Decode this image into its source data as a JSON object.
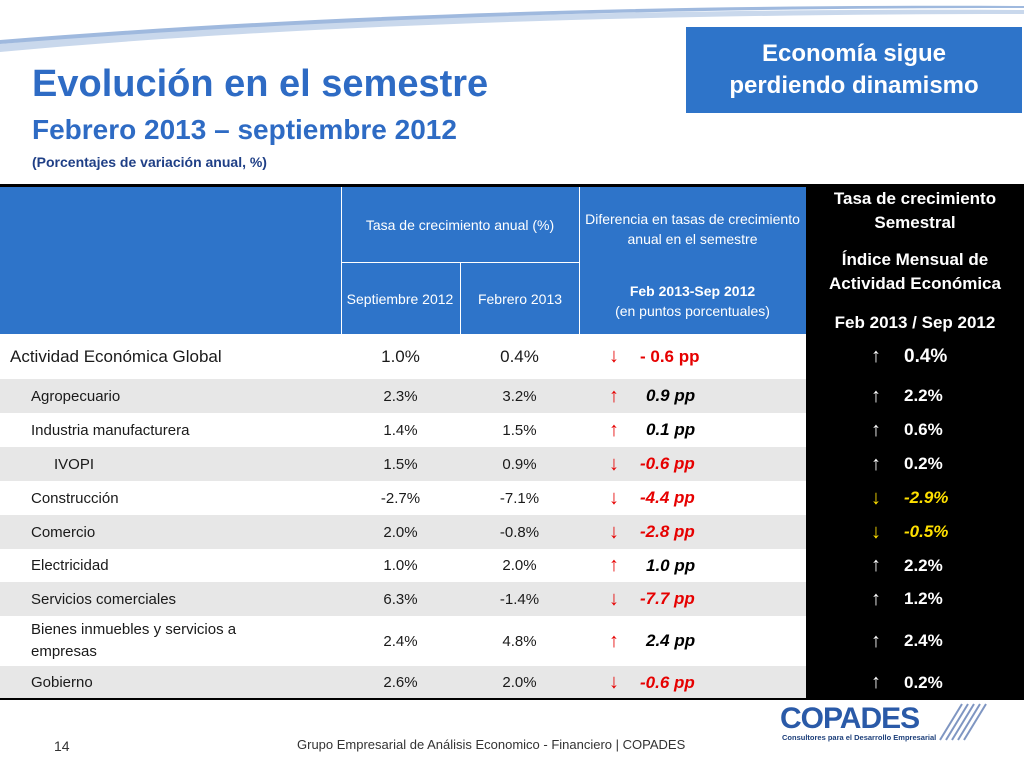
{
  "header": {
    "title": "Evolución en el semestre",
    "subtitle": "Febrero 2013 – septiembre 2012",
    "note": "(Porcentajes de variación anual, %)",
    "callout": "Economía sigue perdiendo dinamismo"
  },
  "colors": {
    "accent": "#2e74c9",
    "title": "#2e6bc4",
    "negative": "#e60000",
    "warning": "#ffe000"
  },
  "table": {
    "col_growth": "Tasa de crecimiento anual (%)",
    "col_sep": "Septiembre 2012",
    "col_feb": "Febrero 2013",
    "col_diff_line1": "Diferencia en tasas de crecimiento anual en el semestre",
    "col_diff_line2": "Feb 2013-Sep 2012",
    "col_diff_line3": "(en puntos porcentuales)",
    "col_semi_1": "Tasa de crecimiento Semestral",
    "col_semi_2": "Índice Mensual de Actividad Económica",
    "col_semi_3": "Feb 2013 / Sep 2012",
    "rows": [
      {
        "name": "Actividad Económica Global",
        "sep": "1.0%",
        "feb": "0.4%",
        "diff_arrow": "↓",
        "diff": "- 0.6 pp",
        "semi_arrow": "↑",
        "semi": "0.4%"
      },
      {
        "name": "Agropecuario",
        "sep": "2.3%",
        "feb": "3.2%",
        "diff_arrow": "↑",
        "diff": "0.9 pp",
        "semi_arrow": "↑",
        "semi": "2.2%"
      },
      {
        "name": "Industria manufacturera",
        "sep": "1.4%",
        "feb": "1.5%",
        "diff_arrow": "↑",
        "diff": "0.1 pp",
        "semi_arrow": "↑",
        "semi": "0.6%"
      },
      {
        "name": "IVOPI",
        "sep": "1.5%",
        "feb": "0.9%",
        "diff_arrow": "↓",
        "diff": "-0.6 pp",
        "semi_arrow": "↑",
        "semi": "0.2%"
      },
      {
        "name": "Construcción",
        "sep": "-2.7%",
        "feb": "-7.1%",
        "diff_arrow": "↓",
        "diff": "-4.4 pp",
        "semi_arrow": "↓",
        "semi": "-2.9%"
      },
      {
        "name": "Comercio",
        "sep": "2.0%",
        "feb": "-0.8%",
        "diff_arrow": "↓",
        "diff": "-2.8 pp",
        "semi_arrow": "↓",
        "semi": "-0.5%"
      },
      {
        "name": "Electricidad",
        "sep": "1.0%",
        "feb": "2.0%",
        "diff_arrow": "↑",
        "diff": "1.0 pp",
        "semi_arrow": "↑",
        "semi": "2.2%"
      },
      {
        "name": "Servicios comerciales",
        "sep": "6.3%",
        "feb": "-1.4%",
        "diff_arrow": "↓",
        "diff": "-7.7 pp",
        "semi_arrow": "↑",
        "semi": "1.2%"
      },
      {
        "name": "Bienes inmuebles y servicios a empresas",
        "sep": "2.4%",
        "feb": "4.8%",
        "diff_arrow": "↑",
        "diff": "2.4 pp",
        "semi_arrow": "↑",
        "semi": "2.4%"
      },
      {
        "name": "Gobierno",
        "sep": "2.6%",
        "feb": "2.0%",
        "diff_arrow": "↓",
        "diff": "-0.6 pp",
        "semi_arrow": "↑",
        "semi": "0.2%"
      }
    ]
  },
  "footer": {
    "page_number": "14",
    "text": "Grupo Empresarial de Análisis Economico - Financiero | COPADES",
    "logo_name": "COPADES",
    "logo_tagline": "Consultores para el Desarrollo Empresarial"
  }
}
